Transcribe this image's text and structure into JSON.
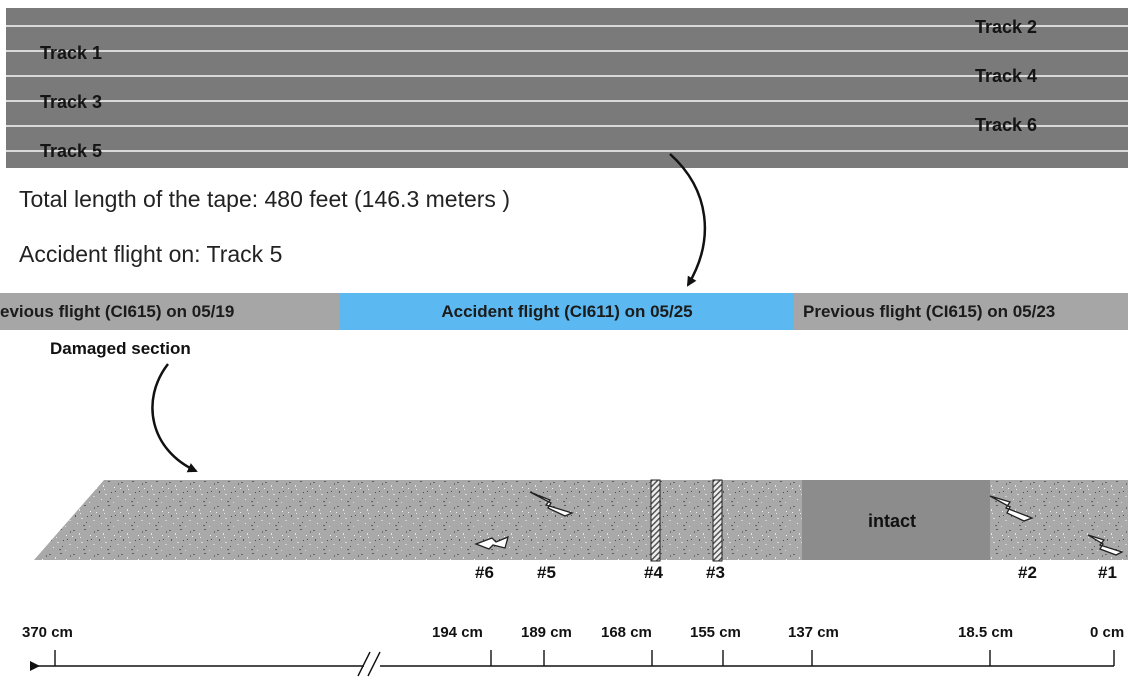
{
  "tape": {
    "tracks": [
      {
        "label": "Track 1"
      },
      {
        "label": "Track 2"
      },
      {
        "label": "Track 3"
      },
      {
        "label": "Track 4"
      },
      {
        "label": "Track 5"
      },
      {
        "label": "Track 6"
      }
    ]
  },
  "info": {
    "total_length": "Total length of the tape: 480 feet (146.3 meters )",
    "accident_track": "Accident flight on: Track 5"
  },
  "flight_bands": {
    "previous_left": "evious flight (CI615) on 05/19",
    "accident": "Accident flight (CI611) on 05/25",
    "previous_right": "Previous flight (CI615) on 05/23",
    "colors": {
      "accident": "#5cb8f0",
      "previous": "#a6a6a6"
    }
  },
  "damaged_label": "Damaged section",
  "intact_label": "intact",
  "markers": [
    "#6",
    "#5",
    "#4",
    "#3",
    "#2",
    "#1"
  ],
  "scale_labels": [
    "370 cm",
    "194 cm",
    "189 cm",
    "168 cm",
    "155 cm",
    "137 cm",
    "18.5 cm",
    "0 cm"
  ]
}
